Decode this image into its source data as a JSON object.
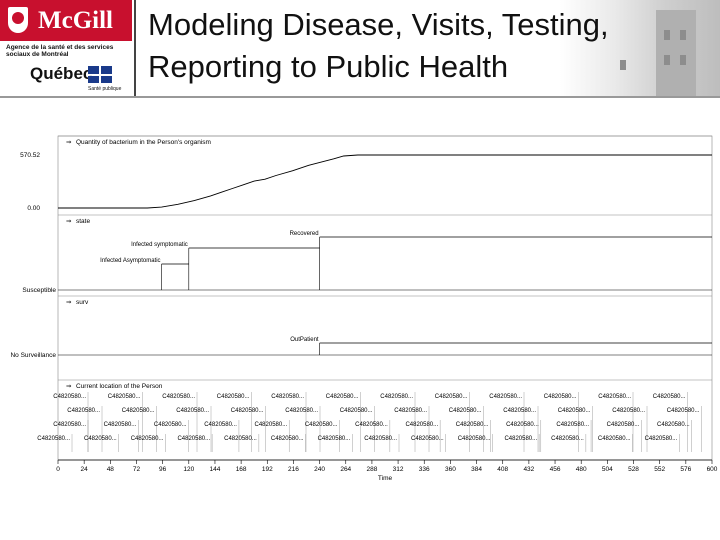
{
  "header": {
    "logo_text": "McGill",
    "agency_text": "Agence de la santé et des services sociaux de Montréal",
    "quebec_text": "Québec",
    "sante_text": "Santé publique",
    "title_line1": "Modeling Disease, Visits, Testing,",
    "title_line2": "Reporting to Public Health"
  },
  "colors": {
    "line": "#000000",
    "grid": "#c8c8c8",
    "brand_red": "#c8102e"
  },
  "chart_data": {
    "type": "line",
    "xlim": [
      0,
      600
    ],
    "x_ticks": [
      0,
      24,
      48,
      72,
      96,
      120,
      144,
      168,
      192,
      216,
      240,
      264,
      288,
      312,
      336,
      360,
      384,
      408,
      432,
      456,
      480,
      504,
      528,
      552,
      576,
      600
    ],
    "xlabel": "Time",
    "panels": [
      {
        "title": "Quantity of bacterium in the Person's organism",
        "y_ticks": [
          "570.52",
          "0.00"
        ],
        "ylim": [
          0,
          570.52
        ],
        "x": [
          0,
          82,
          95,
          110,
          125,
          140,
          150,
          160,
          170,
          180,
          190,
          200,
          215,
          230,
          253,
          262,
          275,
          600
        ],
        "y": [
          0,
          0,
          10,
          40,
          80,
          130,
          170,
          210,
          250,
          290,
          310,
          350,
          400,
          460,
          530,
          560,
          570.52,
          570.52
        ]
      },
      {
        "title": "state",
        "y_tick": "Susceptible",
        "levels": [
          "Susceptible",
          "Infected Asymptomatic",
          "Infected symptomatic",
          "Recovered"
        ],
        "steps": [
          {
            "x": 0,
            "level": 0
          },
          {
            "x": 95,
            "level": 1
          },
          {
            "x": 120,
            "level": 2
          },
          {
            "x": 240,
            "level": 3
          }
        ]
      },
      {
        "title": "surv",
        "y_tick": "No Surveillance",
        "levels": [
          "No Surveillance",
          "OutPatient"
        ],
        "steps": [
          {
            "x": 0,
            "level": 0
          },
          {
            "x": 240,
            "level": 1
          }
        ]
      },
      {
        "title": "Current location of the Person",
        "rows": [
          [
            "C4820580...",
            "C4820580...",
            "C4820580...",
            "C4820580...",
            "C4820580...",
            "C4820580...",
            "C4820580...",
            "C4820580...",
            "C4820580...",
            "C4820580...",
            "C4820580...",
            "C4820580..."
          ],
          [
            "C4820580...",
            "C4820580...",
            "C4820580...",
            "C4820580...",
            "C4820580...",
            "C4820580...",
            "C4820580...",
            "C4820580...",
            "C4820580...",
            "C4820580...",
            "C4820580...",
            "C4820580..."
          ],
          [
            "C4820580...",
            "C4820580...",
            "C4820580...",
            "C4820580...",
            "C4820580...",
            "C4820580...",
            "C4820580...",
            "C4820580...",
            "C4820580...",
            "C4820580...",
            "C4820580...",
            "C4820580...",
            "C4820580..."
          ],
          [
            "C4820580...",
            "C4820580...",
            "C4820580...",
            "C4820580...",
            "C4820580...",
            "C4820580...",
            "C4820580...",
            "C4820580...",
            "C4820580...",
            "C4820580...",
            "C4820580...",
            "C4820580...",
            "C4820580...",
            "C4820580..."
          ]
        ]
      }
    ]
  }
}
